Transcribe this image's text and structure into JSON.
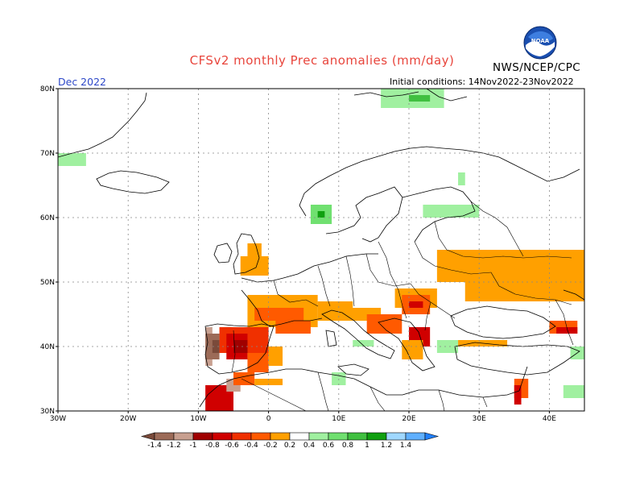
{
  "header": {
    "title": "CFSv2 monthly Prec anomalies (mm/day)",
    "org": "NWS/NCEP/CPC",
    "month": "Dec 2022",
    "initial_conditions": "Initial conditions: 14Nov2022-23Nov2022",
    "logo_text": "NOAA"
  },
  "map": {
    "lon_range": [
      -30,
      45
    ],
    "lat_range": [
      30,
      80
    ],
    "lat_labels": [
      "80N",
      "70N",
      "60N",
      "50N",
      "40N",
      "30N"
    ],
    "lon_labels": [
      "30W",
      "20W",
      "10W",
      "0",
      "10E",
      "20E",
      "30E",
      "40E"
    ],
    "gridlines": "dotted",
    "anomaly_regions": [
      {
        "name": "iberia-dry",
        "lon": [
          -9,
          -3
        ],
        "lat": [
          36,
          43
        ],
        "level": "-1.0"
      },
      {
        "name": "iberia-very-dry",
        "lon": [
          -9,
          -8
        ],
        "lat": [
          38,
          42
        ],
        "level": "-1.4"
      },
      {
        "name": "france-dry",
        "lon": [
          -3,
          7
        ],
        "lat": [
          43,
          48
        ],
        "level": "-0.2"
      },
      {
        "name": "east-europe-dry",
        "lon": [
          24,
          45
        ],
        "lat": [
          45,
          55
        ],
        "level": "-0.2"
      },
      {
        "name": "scandinavia-wet",
        "lon": [
          7,
          9
        ],
        "lat": [
          60,
          62
        ],
        "level": "0.8"
      },
      {
        "name": "finland-wet",
        "lon": [
          22,
          30
        ],
        "lat": [
          60,
          62
        ],
        "level": "0.2"
      }
    ]
  },
  "colorbar": {
    "labels": [
      "-1.4",
      "-1.2",
      "-1",
      "-0.8",
      "-0.6",
      "-0.4",
      "-0.2",
      "0.2",
      "0.4",
      "0.6",
      "0.8",
      "1",
      "1.2",
      "1.4"
    ],
    "colors": [
      "#7a4a3a",
      "#9c6b58",
      "#c8a090",
      "#a00000",
      "#d00000",
      "#f03000",
      "#ff5a00",
      "#ffa000",
      "#ffffff",
      "#a0f0a0",
      "#70e070",
      "#40c040",
      "#10a010",
      "#a0d8ff",
      "#60b0ff",
      "#2080ff"
    ]
  }
}
